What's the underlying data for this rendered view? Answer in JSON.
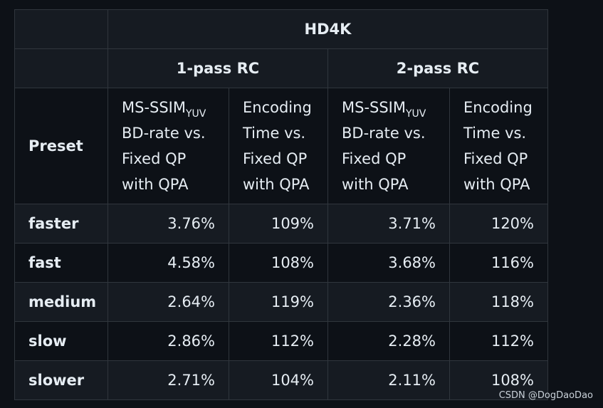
{
  "table": {
    "group_header": "HD4K",
    "pass_headers": [
      "1-pass RC",
      "2-pass RC"
    ],
    "preset_header": "Preset",
    "metric_header": {
      "line1_main": "MS-SSIM",
      "line1_sub": "YUV",
      "line2": "BD-rate vs.",
      "line3": "Fixed QP",
      "line4": "with QPA"
    },
    "time_header": {
      "line1": "Encoding",
      "line2": "Time vs.",
      "line3": "Fixed QP",
      "line4": "with QPA"
    },
    "rows": [
      {
        "preset": "faster",
        "bd1": "3.76%",
        "t1": "109%",
        "bd2": "3.71%",
        "t2": "120%"
      },
      {
        "preset": "fast",
        "bd1": "4.58%",
        "t1": "108%",
        "bd2": "3.68%",
        "t2": "116%"
      },
      {
        "preset": "medium",
        "bd1": "2.64%",
        "t1": "119%",
        "bd2": "2.36%",
        "t2": "118%"
      },
      {
        "preset": "slow",
        "bd1": "2.86%",
        "t1": "112%",
        "bd2": "2.28%",
        "t2": "112%"
      },
      {
        "preset": "slower",
        "bd1": "2.71%",
        "t1": "104%",
        "bd2": "2.11%",
        "t2": "108%"
      }
    ]
  },
  "watermark": "CSDN @DogDaoDao"
}
